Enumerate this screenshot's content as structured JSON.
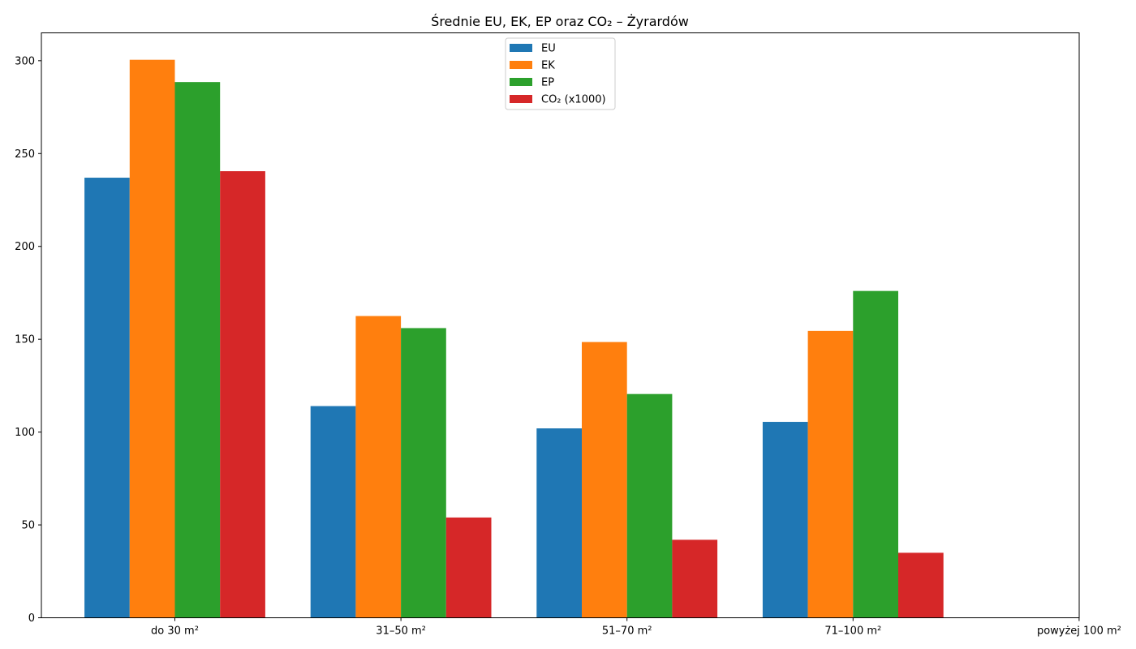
{
  "chart_data": {
    "type": "bar",
    "title": "Średnie EU, EK, EP oraz CO₂ – Żyrardów",
    "xlabel": "",
    "ylabel": "",
    "categories": [
      "do 30 m²",
      "31–50 m²",
      "51–70 m²",
      "71–100 m²",
      "powyżej 100 m²"
    ],
    "ylim": [
      0,
      315
    ],
    "yticks": [
      0,
      50,
      100,
      150,
      200,
      250,
      300
    ],
    "legend_position": "top-center",
    "grid": false,
    "series": [
      {
        "name": "EU",
        "color": "#1f77b4",
        "values": [
          237,
          114,
          102,
          105.5,
          null
        ]
      },
      {
        "name": "EK",
        "color": "#ff7f0e",
        "values": [
          300.5,
          162.5,
          148.5,
          154.5,
          null
        ]
      },
      {
        "name": "EP",
        "color": "#2ca02c",
        "values": [
          288.5,
          156,
          120.5,
          176,
          null
        ]
      },
      {
        "name": "CO₂ (x1000)",
        "color": "#d62728",
        "values": [
          240.5,
          54,
          42,
          35,
          null
        ]
      }
    ]
  }
}
